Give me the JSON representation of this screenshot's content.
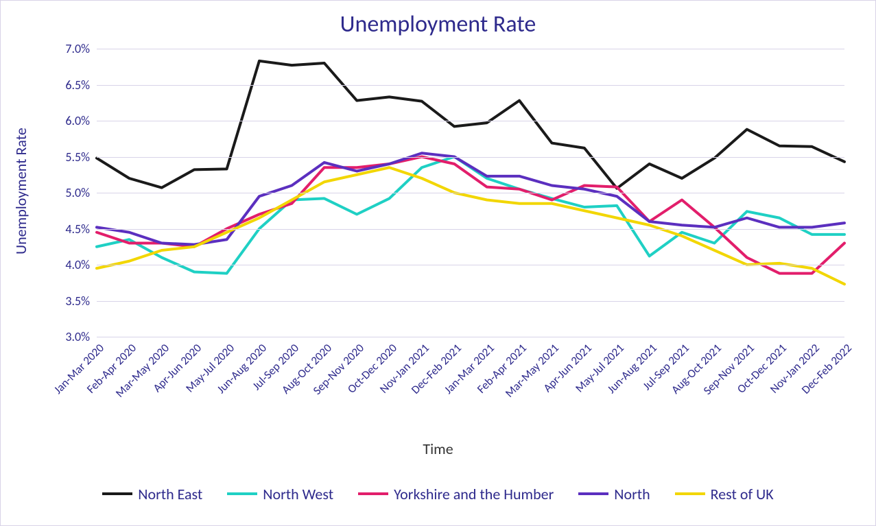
{
  "chart": {
    "type": "line",
    "title": "Unemployment Rate",
    "title_fontsize": 34,
    "title_color": "#2e2a8c",
    "background_color": "#ffffff",
    "border_color": "#d8d3e8",
    "grid_color": "#d8d3e8",
    "x_axis": {
      "title": "Time",
      "title_fontsize": 22,
      "title_color": "#333333",
      "tick_fontsize": 17,
      "tick_color": "#2e2a8c",
      "tick_rotation_deg": -45,
      "categories": [
        "Jan-Mar 2020",
        "Feb-Apr 2020",
        "Mar-May 2020",
        "Apr-Jun 2020",
        "May-Jul 2020",
        "Jun-Aug 2020",
        "Jul-Sep 2020",
        "Aug-Oct 2020",
        "Sep-Nov 2020",
        "Oct-Dec 2020",
        "Nov-Jan 2021",
        "Dec-Feb 2021",
        "Jan-Mar 2021",
        "Feb-Apr 2021",
        "Mar-May 2021",
        "Apr-Jun 2021",
        "May-Jul 2021",
        "Jun-Aug 2021",
        "Jul-Sep 2021",
        "Aug-Oct 2021",
        "Sep-Nov 2021",
        "Oct-Dec 2021",
        "Nov-Jan 2022",
        "Dec-Feb 2022"
      ]
    },
    "y_axis": {
      "title": "Unemployment Rate",
      "title_fontsize": 22,
      "title_color": "#2e2a8c",
      "tick_fontsize": 18,
      "tick_color": "#2e2a8c",
      "ymin": 3.0,
      "ymax": 7.0,
      "tick_step": 0.5,
      "tick_format": "percent_one_decimal"
    },
    "line_width": 4,
    "series": [
      {
        "name": "North East",
        "color": "#1a1a1a",
        "values": [
          5.48,
          5.2,
          5.07,
          5.32,
          5.33,
          6.83,
          6.77,
          6.8,
          6.28,
          6.33,
          6.27,
          5.92,
          5.97,
          6.28,
          5.69,
          5.62,
          5.06,
          5.4,
          5.2,
          5.48,
          5.88,
          5.65,
          5.64,
          5.43
        ]
      },
      {
        "name": "North West",
        "color": "#1fd0c4",
        "values": [
          4.25,
          4.35,
          4.1,
          3.9,
          3.88,
          4.5,
          4.9,
          4.92,
          4.7,
          4.92,
          5.35,
          5.5,
          5.2,
          5.05,
          4.92,
          4.8,
          4.82,
          4.12,
          4.45,
          4.3,
          4.74,
          4.65,
          4.42,
          4.42
        ]
      },
      {
        "name": "Yorkshire and the Humber",
        "color": "#e21e6b",
        "values": [
          4.45,
          4.3,
          4.3,
          4.25,
          4.5,
          4.7,
          4.85,
          5.35,
          5.35,
          5.4,
          5.5,
          5.4,
          5.08,
          5.05,
          4.9,
          5.1,
          5.08,
          4.6,
          4.9,
          4.52,
          4.1,
          3.88,
          3.88,
          4.3
        ]
      },
      {
        "name": "North",
        "color": "#5b2fbf",
        "values": [
          4.52,
          4.45,
          4.3,
          4.28,
          4.35,
          4.95,
          5.1,
          5.42,
          5.3,
          5.4,
          5.55,
          5.5,
          5.23,
          5.23,
          5.1,
          5.05,
          4.95,
          4.6,
          4.55,
          4.52,
          4.65,
          4.52,
          4.52,
          4.58
        ]
      },
      {
        "name": "Rest of UK",
        "color": "#f2d600",
        "values": [
          3.95,
          4.05,
          4.2,
          4.25,
          4.45,
          4.65,
          4.9,
          5.15,
          5.25,
          5.35,
          5.2,
          5.0,
          4.9,
          4.85,
          4.85,
          4.75,
          4.65,
          4.55,
          4.4,
          4.2,
          4.0,
          4.02,
          3.95,
          3.73
        ]
      }
    ]
  }
}
